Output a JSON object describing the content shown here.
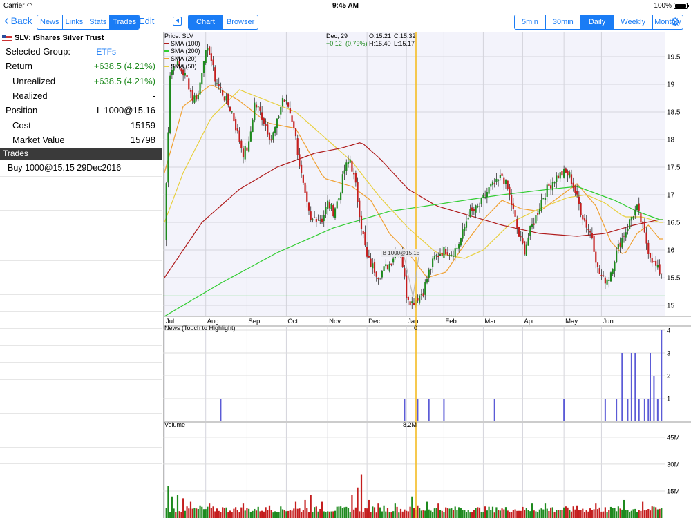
{
  "status": {
    "carrier": "Carrier",
    "wifi_icon": "wifi-icon",
    "time": "9:45 AM",
    "battery": "100%"
  },
  "nav": {
    "back": "Back",
    "tabs": [
      "News",
      "Links",
      "Stats",
      "Trades"
    ],
    "selected_tab": "Trades",
    "edit": "Edit"
  },
  "symbol": {
    "title": "SLV: iShares Silver Trust"
  },
  "summary": {
    "group_label": "Selected Group:",
    "group_value": "ETFs",
    "return_label": "Return",
    "return_value": "+638.5 (4.21%)",
    "unrealized_label": "Unrealized",
    "unrealized_value": "+638.5 (4.21%)",
    "realized_label": "Realized",
    "realized_value": "-",
    "position_label": "Position",
    "position_value": "L 1000@15.16",
    "cost_label": "Cost",
    "cost_value": "15159",
    "mv_label": "Market Value",
    "mv_value": "15798"
  },
  "trades": {
    "header": "Trades",
    "items": [
      "Buy 1000@15.15 29Dec2016"
    ]
  },
  "toolbar": {
    "view_tabs": [
      "Chart",
      "Browser"
    ],
    "selected_view": "Chart",
    "intervals": [
      "5min",
      "30min",
      "Daily",
      "Weekly",
      "Monthly"
    ],
    "selected_interval": "Daily",
    "settings_icon": "gear-icon"
  },
  "chart_data": [
    {
      "type": "candlestick",
      "title": "Price: SLV",
      "legend": [
        {
          "name": "SMA (100)",
          "color": "#b01c1c"
        },
        {
          "name": "SMA (200)",
          "color": "#32cd32"
        },
        {
          "name": "SMA (20)",
          "color": "#f0a030"
        },
        {
          "name": "SMA (50)",
          "color": "#e8d040"
        }
      ],
      "crosshair": {
        "date": "Dec, 29",
        "open": "O:15.21",
        "close": "C:15.32",
        "change": "+0.12",
        "change_pct": "(0.79%)",
        "high": "H:15.40",
        "low": "L:15.17"
      },
      "x_ticks": [
        "Jul",
        "Aug",
        "Sep",
        "Oct",
        "Nov",
        "Dec",
        "Jan",
        "Feb",
        "Mar",
        "Apr",
        "May",
        "Jun"
      ],
      "y_ticks": [
        "19.5",
        "19",
        "18.5",
        "18",
        "17.5",
        "17",
        "16.5",
        "16",
        "15.5",
        "15"
      ],
      "ylim": [
        14.8,
        19.95
      ],
      "trade_marker": {
        "label": "B 1000@15.15",
        "price": 15.15
      },
      "horizontal_line": 15.17,
      "close_points": [
        [
          0,
          16.2
        ],
        [
          3,
          19.2
        ],
        [
          6,
          19.4
        ],
        [
          9,
          19.25
        ],
        [
          12,
          19.1
        ],
        [
          15,
          18.75
        ],
        [
          18,
          18.8
        ],
        [
          21,
          19.5
        ],
        [
          24,
          19.6
        ],
        [
          27,
          19.1
        ],
        [
          30,
          18.9
        ],
        [
          33,
          18.7
        ],
        [
          36,
          18.5
        ],
        [
          39,
          18.1
        ],
        [
          42,
          17.75
        ],
        [
          45,
          17.9
        ],
        [
          48,
          18.65
        ],
        [
          51,
          18.5
        ],
        [
          54,
          18.25
        ],
        [
          57,
          18.0
        ],
        [
          60,
          18.3
        ],
        [
          63,
          18.75
        ],
        [
          66,
          18.6
        ],
        [
          69,
          18.25
        ],
        [
          72,
          17.55
        ],
        [
          75,
          16.95
        ],
        [
          78,
          16.5
        ],
        [
          81,
          16.6
        ],
        [
          84,
          16.55
        ],
        [
          87,
          16.85
        ],
        [
          90,
          16.7
        ],
        [
          93,
          16.95
        ],
        [
          96,
          17.45
        ],
        [
          99,
          17.65
        ],
        [
          102,
          17.15
        ],
        [
          105,
          16.45
        ],
        [
          108,
          15.85
        ],
        [
          111,
          15.7
        ],
        [
          114,
          15.55
        ],
        [
          117,
          15.65
        ],
        [
          120,
          15.75
        ],
        [
          123,
          15.95
        ],
        [
          126,
          16.0
        ],
        [
          129,
          15.2
        ],
        [
          132,
          15.05
        ],
        [
          135,
          15.15
        ],
        [
          138,
          15.25
        ],
        [
          141,
          15.6
        ],
        [
          144,
          15.85
        ],
        [
          147,
          15.95
        ],
        [
          150,
          16.0
        ],
        [
          153,
          15.95
        ],
        [
          156,
          16.05
        ],
        [
          159,
          16.3
        ],
        [
          162,
          16.65
        ],
        [
          165,
          16.7
        ],
        [
          168,
          16.8
        ],
        [
          171,
          17.0
        ],
        [
          174,
          17.15
        ],
        [
          177,
          17.2
        ],
        [
          180,
          17.35
        ],
        [
          183,
          17.1
        ],
        [
          186,
          16.7
        ],
        [
          189,
          16.25
        ],
        [
          192,
          16.0
        ],
        [
          195,
          16.35
        ],
        [
          198,
          16.6
        ],
        [
          201,
          16.9
        ],
        [
          204,
          17.1
        ],
        [
          207,
          17.25
        ],
        [
          210,
          17.35
        ],
        [
          213,
          17.4
        ],
        [
          216,
          17.35
        ],
        [
          219,
          17.05
        ],
        [
          222,
          16.7
        ],
        [
          225,
          16.45
        ],
        [
          228,
          16.25
        ],
        [
          231,
          15.65
        ],
        [
          234,
          15.45
        ],
        [
          237,
          15.5
        ],
        [
          240,
          15.85
        ],
        [
          243,
          16.15
        ],
        [
          246,
          16.35
        ],
        [
          249,
          16.6
        ],
        [
          252,
          16.75
        ],
        [
          255,
          16.4
        ],
        [
          258,
          16.0
        ],
        [
          261,
          15.75
        ],
        [
          264,
          15.6
        ]
      ],
      "sma_points": {
        "SMA (20)": [
          [
            0,
            17.4
          ],
          [
            10,
            18.6
          ],
          [
            25,
            19.0
          ],
          [
            40,
            18.7
          ],
          [
            55,
            18.3
          ],
          [
            70,
            18.2
          ],
          [
            85,
            17.3
          ],
          [
            100,
            17.15
          ],
          [
            110,
            16.9
          ],
          [
            120,
            16.3
          ],
          [
            130,
            15.95
          ],
          [
            140,
            15.5
          ],
          [
            150,
            15.6
          ],
          [
            160,
            16.1
          ],
          [
            170,
            16.55
          ],
          [
            180,
            16.9
          ],
          [
            190,
            16.75
          ],
          [
            200,
            16.7
          ],
          [
            210,
            16.95
          ],
          [
            220,
            17.2
          ],
          [
            230,
            16.8
          ],
          [
            238,
            16.15
          ],
          [
            245,
            15.9
          ],
          [
            252,
            16.3
          ],
          [
            258,
            16.45
          ],
          [
            264,
            16.2
          ]
        ],
        "SMA (50)": [
          [
            0,
            16.5
          ],
          [
            10,
            17.4
          ],
          [
            25,
            18.4
          ],
          [
            40,
            18.9
          ],
          [
            55,
            18.7
          ],
          [
            70,
            18.5
          ],
          [
            85,
            18.05
          ],
          [
            100,
            17.6
          ],
          [
            115,
            16.95
          ],
          [
            130,
            16.4
          ],
          [
            145,
            15.95
          ],
          [
            160,
            15.85
          ],
          [
            170,
            16.0
          ],
          [
            185,
            16.5
          ],
          [
            200,
            16.75
          ],
          [
            215,
            16.95
          ],
          [
            225,
            17.0
          ],
          [
            235,
            16.85
          ],
          [
            245,
            16.6
          ],
          [
            255,
            16.6
          ],
          [
            264,
            16.5
          ]
        ],
        "SMA (100)": [
          [
            0,
            15.5
          ],
          [
            20,
            16.5
          ],
          [
            40,
            17.1
          ],
          [
            60,
            17.5
          ],
          [
            80,
            17.75
          ],
          [
            95,
            17.85
          ],
          [
            105,
            17.95
          ],
          [
            115,
            17.65
          ],
          [
            130,
            17.1
          ],
          [
            145,
            16.8
          ],
          [
            160,
            16.65
          ],
          [
            180,
            16.45
          ],
          [
            200,
            16.3
          ],
          [
            220,
            16.25
          ],
          [
            235,
            16.3
          ],
          [
            250,
            16.45
          ],
          [
            264,
            16.55
          ]
        ],
        "SMA (200)": [
          [
            0,
            14.8
          ],
          [
            30,
            15.4
          ],
          [
            60,
            15.95
          ],
          [
            90,
            16.4
          ],
          [
            120,
            16.7
          ],
          [
            150,
            16.85
          ],
          [
            180,
            17.0
          ],
          [
            205,
            17.1
          ],
          [
            220,
            17.15
          ],
          [
            240,
            16.9
          ],
          [
            252,
            16.7
          ],
          [
            264,
            16.55
          ]
        ]
      }
    },
    {
      "type": "bar",
      "title": "News (Touch to Highlight)",
      "crosshair_value": "0",
      "y_ticks": [
        "4",
        "3",
        "2",
        "1"
      ],
      "ylim": [
        0,
        4
      ],
      "bars": [
        [
          30,
          1
        ],
        [
          128,
          1
        ],
        [
          135,
          1
        ],
        [
          141,
          1
        ],
        [
          149,
          1
        ],
        [
          176,
          1
        ],
        [
          213,
          1
        ],
        [
          235,
          1
        ],
        [
          241,
          1
        ],
        [
          244,
          3
        ],
        [
          247,
          1
        ],
        [
          249,
          3
        ],
        [
          251,
          3
        ],
        [
          253,
          1
        ],
        [
          256,
          1
        ],
        [
          258,
          1
        ],
        [
          259,
          3
        ],
        [
          261,
          2
        ],
        [
          263,
          1
        ],
        [
          265,
          4
        ]
      ]
    },
    {
      "type": "bar",
      "title": "Volume",
      "crosshair_value": "8.2M",
      "y_ticks": [
        "45M",
        "30M",
        "15M"
      ],
      "ylim": [
        0,
        53
      ],
      "peaks": [
        [
          2,
          18
        ],
        [
          4,
          12
        ],
        [
          7,
          13
        ],
        [
          10,
          11
        ],
        [
          14,
          9
        ],
        [
          19,
          7
        ],
        [
          24,
          8
        ],
        [
          31,
          6
        ],
        [
          42,
          8
        ],
        [
          56,
          7
        ],
        [
          70,
          9
        ],
        [
          75,
          10
        ],
        [
          78,
          13
        ],
        [
          84,
          9
        ],
        [
          96,
          6
        ],
        [
          100,
          13
        ],
        [
          103,
          17
        ],
        [
          105,
          24
        ],
        [
          109,
          10
        ],
        [
          114,
          8
        ],
        [
          117,
          7
        ],
        [
          123,
          8
        ],
        [
          132,
          12
        ],
        [
          135,
          7
        ],
        [
          140,
          9
        ],
        [
          146,
          8
        ],
        [
          157,
          6
        ],
        [
          177,
          6
        ],
        [
          196,
          8
        ],
        [
          203,
          8
        ],
        [
          207,
          6
        ],
        [
          220,
          7
        ],
        [
          230,
          8
        ],
        [
          235,
          6
        ],
        [
          245,
          10
        ],
        [
          255,
          9
        ],
        [
          262,
          6
        ]
      ]
    }
  ]
}
